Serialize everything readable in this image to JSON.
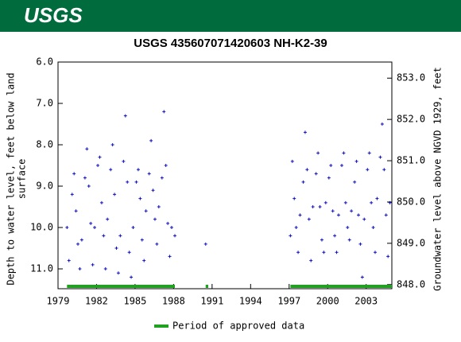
{
  "logo": "USGS",
  "chart_data": {
    "type": "scatter",
    "title": "USGS 435607071420603 NH-K2-39",
    "y_label_lines": [
      "Depth to water level, feet below land",
      "surface"
    ],
    "y2_label": "Groundwater level above NGVD 1929, feet",
    "legend_label": "Period of approved data",
    "approved_color": "#22a022",
    "approved_periods": [
      [
        1979.7,
        1988.1
      ],
      [
        1990.5,
        1990.7
      ],
      [
        1997.1,
        2005
      ]
    ],
    "color": "#1010c0",
    "xlim": [
      1979,
      2005
    ],
    "xticks": [
      1979,
      1982,
      1985,
      1988,
      1991,
      1994,
      1997,
      2000,
      2003
    ],
    "ylim": [
      6.0,
      11.48
    ],
    "yticks": [
      {
        "value": 6,
        "label": "6.0"
      },
      {
        "value": 7,
        "label": "7.0"
      },
      {
        "value": 8,
        "label": "8.0"
      },
      {
        "value": 9,
        "label": "9.0"
      },
      {
        "value": 10,
        "label": "10.0"
      },
      {
        "value": 11,
        "label": "11.0"
      }
    ],
    "y2lim": [
      847.9,
      853.39
    ],
    "y2ticks": [
      {
        "value": 848,
        "label": "848.0"
      },
      {
        "value": 849,
        "label": "849.0"
      },
      {
        "value": 850,
        "label": "850.0"
      },
      {
        "value": 851,
        "label": "851.0"
      },
      {
        "value": 852,
        "label": "852.0"
      },
      {
        "value": 853,
        "label": "853.0"
      }
    ],
    "x": [
      1979.7,
      1979.85,
      1980.1,
      1980.25,
      1980.4,
      1980.55,
      1980.7,
      1980.85,
      1981.1,
      1981.25,
      1981.4,
      1981.55,
      1981.7,
      1981.85,
      1982.1,
      1982.25,
      1982.4,
      1982.55,
      1982.7,
      1982.85,
      1983.1,
      1983.25,
      1983.4,
      1983.55,
      1983.7,
      1983.85,
      1984.1,
      1984.25,
      1984.4,
      1984.55,
      1984.7,
      1984.85,
      1985.1,
      1985.25,
      1985.4,
      1985.55,
      1985.7,
      1985.85,
      1986.1,
      1986.25,
      1986.4,
      1986.55,
      1986.7,
      1986.85,
      1987.1,
      1987.25,
      1987.4,
      1987.55,
      1987.7,
      1987.85,
      1988.1,
      1990.5,
      1997.1,
      1997.25,
      1997.4,
      1997.55,
      1997.7,
      1997.85,
      1998.1,
      1998.25,
      1998.4,
      1998.55,
      1998.7,
      1998.85,
      1999.1,
      1999.25,
      1999.4,
      1999.55,
      1999.7,
      1999.85,
      2000.1,
      2000.25,
      2000.4,
      2000.55,
      2000.7,
      2000.85,
      2001.1,
      2001.25,
      2001.4,
      2001.55,
      2001.7,
      2001.85,
      2002.1,
      2002.25,
      2002.4,
      2002.55,
      2002.7,
      2002.85,
      2003.1,
      2003.25,
      2003.4,
      2003.55,
      2003.7,
      2003.85,
      2004.1,
      2004.25,
      2004.4,
      2004.55,
      2004.7,
      2004.85
    ],
    "values": [
      10.0,
      10.8,
      9.2,
      8.7,
      9.6,
      10.4,
      11.0,
      10.3,
      8.8,
      8.1,
      9.0,
      9.9,
      10.9,
      10.0,
      8.5,
      8.3,
      9.4,
      10.2,
      11.0,
      9.8,
      8.6,
      8.0,
      9.2,
      10.5,
      11.1,
      10.2,
      8.4,
      7.3,
      8.9,
      10.6,
      11.2,
      10.0,
      8.9,
      8.6,
      9.3,
      10.3,
      10.8,
      9.6,
      8.7,
      7.9,
      9.1,
      9.8,
      10.4,
      9.5,
      8.8,
      7.2,
      8.5,
      9.9,
      10.7,
      10.0,
      10.2,
      10.4,
      10.2,
      8.4,
      9.3,
      10.0,
      10.6,
      9.7,
      8.9,
      7.7,
      8.6,
      9.8,
      10.8,
      9.5,
      8.7,
      8.2,
      9.5,
      10.3,
      10.6,
      9.4,
      8.8,
      8.5,
      9.6,
      10.2,
      10.6,
      9.7,
      8.5,
      8.2,
      9.4,
      10.0,
      10.3,
      9.6,
      8.9,
      8.4,
      9.7,
      10.4,
      11.2,
      9.8,
      8.6,
      8.2,
      9.4,
      10.0,
      10.6,
      9.3,
      8.3,
      7.5,
      8.6,
      9.7,
      10.7,
      9.4
    ]
  }
}
